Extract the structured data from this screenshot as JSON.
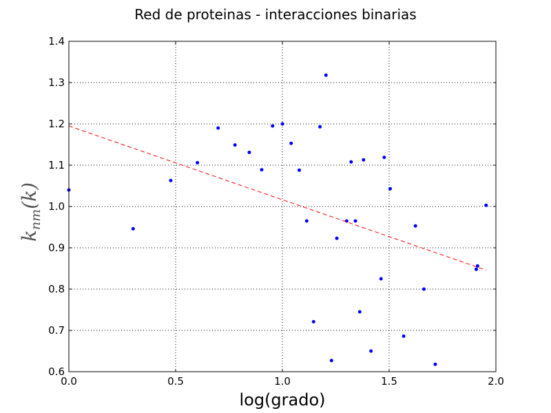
{
  "chart_data": {
    "type": "scatter",
    "title": "Red de proteinas - interacciones binarias",
    "xlabel": "log(grado)",
    "ylabel": {
      "main": "k",
      "sub": "nm",
      "suffix": "(k)"
    },
    "xlim": [
      0.0,
      2.0
    ],
    "ylim": [
      0.6,
      1.4
    ],
    "xticks": [
      0.0,
      0.5,
      1.0,
      1.5,
      2.0
    ],
    "yticks": [
      0.6,
      0.7,
      0.8,
      0.9,
      1.0,
      1.1,
      1.2,
      1.3,
      1.4
    ],
    "xtick_labels": [
      "0.0",
      "0.5",
      "1.0",
      "1.5",
      "2.0"
    ],
    "ytick_labels": [
      "0.6",
      "0.7",
      "0.8",
      "0.9",
      "1.0",
      "1.1",
      "1.2",
      "1.3",
      "1.4"
    ],
    "grid": true,
    "series": [
      {
        "kind": "points",
        "color": "#0000ff",
        "points": [
          [
            0.0,
            1.04
          ],
          [
            0.301,
            0.946
          ],
          [
            0.477,
            1.063
          ],
          [
            0.602,
            1.106
          ],
          [
            0.699,
            1.19
          ],
          [
            0.778,
            1.149
          ],
          [
            0.845,
            1.131
          ],
          [
            0.903,
            1.089
          ],
          [
            0.954,
            1.195
          ],
          [
            1.0,
            1.2
          ],
          [
            1.041,
            1.153
          ],
          [
            1.079,
            1.088
          ],
          [
            1.114,
            0.965
          ],
          [
            1.146,
            0.721
          ],
          [
            1.176,
            1.193
          ],
          [
            1.204,
            1.318
          ],
          [
            1.23,
            0.627
          ],
          [
            1.255,
            0.923
          ],
          [
            1.301,
            0.965
          ],
          [
            1.322,
            1.108
          ],
          [
            1.342,
            0.965
          ],
          [
            1.362,
            0.745
          ],
          [
            1.38,
            1.113
          ],
          [
            1.415,
            0.65
          ],
          [
            1.462,
            0.825
          ],
          [
            1.477,
            1.119
          ],
          [
            1.505,
            1.043
          ],
          [
            1.568,
            0.686
          ],
          [
            1.623,
            0.953
          ],
          [
            1.663,
            0.8
          ],
          [
            1.716,
            0.618
          ],
          [
            1.908,
            0.848
          ],
          [
            1.914,
            0.856
          ],
          [
            1.954,
            1.003
          ]
        ]
      },
      {
        "kind": "fit-line",
        "color": "#ff0000",
        "style": "dashed",
        "x": [
          0.0,
          1.954
        ],
        "y": [
          1.195,
          0.846
        ]
      }
    ]
  }
}
